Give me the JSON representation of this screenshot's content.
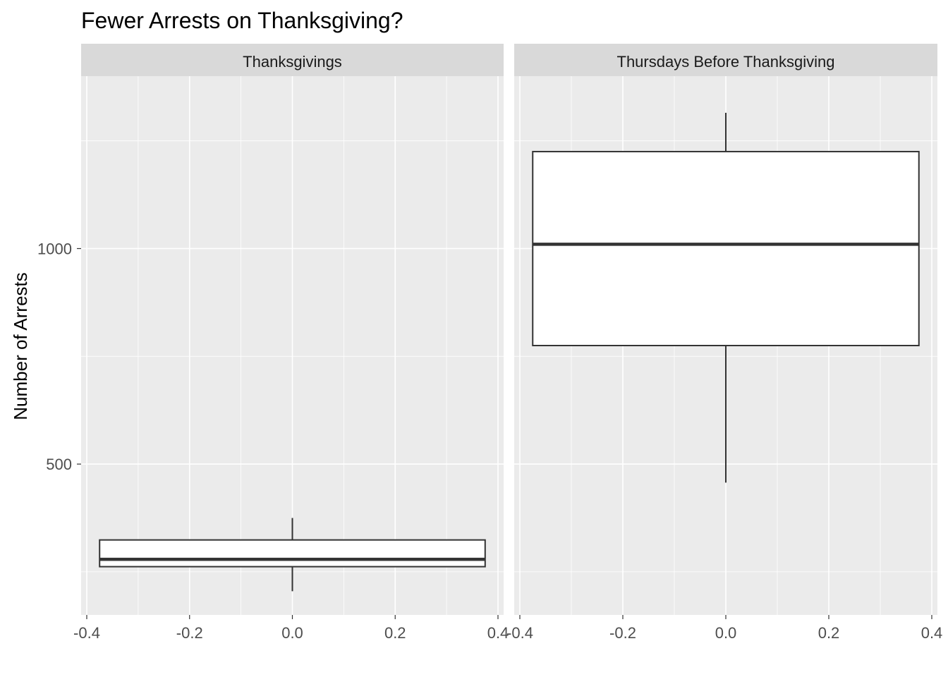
{
  "chart_data": {
    "type": "boxplot",
    "title": "Fewer Arrests on Thanksgiving?",
    "ylabel": "Number of Arrests",
    "xlabel": "",
    "xlim": [
      -0.4,
      0.4
    ],
    "ylim": [
      150,
      1400
    ],
    "x_ticks": [
      -0.4,
      -0.2,
      0.0,
      0.2,
      0.4
    ],
    "x_tick_labels": [
      "-0.4",
      "-0.2",
      "0.0",
      "0.2",
      "0.4"
    ],
    "y_ticks": [
      500,
      1000
    ],
    "y_tick_labels": [
      "500",
      "1000"
    ],
    "grid": true,
    "facets": [
      {
        "label": "Thanksgivings",
        "box": {
          "whisker_low": 205,
          "q1": 262,
          "median": 279,
          "q3": 324,
          "whisker_high": 375
        }
      },
      {
        "label": "Thursdays Before Thanksgiving",
        "box": {
          "whisker_low": 457,
          "q1": 775,
          "median": 1010,
          "q3": 1225,
          "whisker_high": 1315
        }
      }
    ],
    "colors": {
      "panel": "#ebebeb",
      "strip": "#d9d9d9",
      "grid": "#ffffff",
      "box_fill": "#ffffff",
      "box_line": "#333333"
    }
  }
}
